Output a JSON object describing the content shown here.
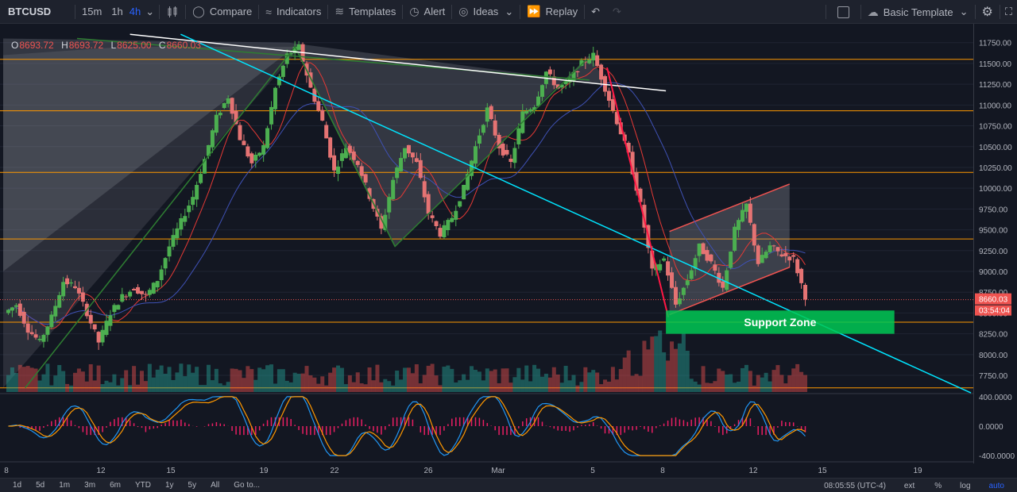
{
  "toolbar": {
    "symbol": "BTCUSD",
    "intervals": [
      "15m",
      "1h",
      "4h"
    ],
    "active_interval": "4h",
    "compare": "Compare",
    "indicators": "Indicators",
    "templates": "Templates",
    "alert": "Alert",
    "ideas": "Ideas",
    "replay": "Replay",
    "layout": "Basic Template"
  },
  "legend": {
    "open_label": "O",
    "open": "8693.72",
    "high_label": "H",
    "high": "8693.72",
    "low_label": "L",
    "low": "8625.00",
    "close_label": "C",
    "close": "8660.03"
  },
  "bottombar": {
    "ranges": [
      "1d",
      "5d",
      "1m",
      "3m",
      "6m",
      "YTD",
      "1y",
      "5y",
      "All"
    ],
    "goto": "Go to...",
    "clock": "08:05:55 (UTC-4)",
    "ext": "ext",
    "percent": "%",
    "log": "log",
    "auto": "auto"
  },
  "colors": {
    "background": "#131722",
    "up": "#26a69a",
    "up_body": "#4caf50",
    "down": "#ef5350",
    "down_body": "#e57373",
    "horizontal_levels": "#ff9800",
    "trendline_cyan": "#00e5ff",
    "support_zone": "#00c853",
    "accent": "#2962ff"
  },
  "icons": [
    "indicators-icon",
    "compare-icon",
    "templates-icon",
    "alert-icon",
    "ideas-icon",
    "replay-icon",
    "undo-icon",
    "redo-icon",
    "layout-icon",
    "cloud-icon",
    "settings-icon"
  ],
  "chart_data": {
    "type": "candlestick",
    "symbol": "BTCUSD",
    "interval": "4h",
    "ylim": [
      7550,
      11900
    ],
    "y_ticks": [
      7750,
      8000,
      8250,
      8500,
      8750,
      9000,
      9250,
      9500,
      9750,
      10000,
      10250,
      10500,
      10750,
      11000,
      11250,
      11500,
      11750
    ],
    "x_ticks": [
      "8",
      "12",
      "15",
      "19",
      "22",
      "26",
      "Mar",
      "5",
      "8",
      "12",
      "15",
      "19"
    ],
    "last_price": "8660.03",
    "last_price_value": 8660.03,
    "countdown": "03:54:04",
    "horizontal_levels": [
      11550,
      10930,
      10190,
      9390,
      8390,
      7600
    ],
    "annotations": {
      "support_zone": {
        "label": "Support Zone",
        "low": 8250,
        "high": 8530
      }
    },
    "ohlc_path": [
      8500,
      8600,
      8300,
      8150,
      8450,
      8880,
      8820,
      8500,
      8150,
      8500,
      8700,
      8800,
      8700,
      8900,
      9300,
      9600,
      9900,
      10350,
      10850,
      11100,
      10600,
      10300,
      10500,
      11200,
      11600,
      11700,
      11200,
      10800,
      10200,
      10500,
      10300,
      9900,
      9500,
      10100,
      10500,
      10300,
      9700,
      9450,
      9650,
      10000,
      10500,
      10950,
      10500,
      10300,
      10900,
      11000,
      11400,
      11200,
      11300,
      11500,
      11600,
      11200,
      10800,
      10400,
      9800,
      9000,
      9150,
      8600,
      8900,
      9300,
      9100,
      8800,
      9500,
      9800,
      9100,
      9300,
      9200,
      9150,
      8700
    ],
    "oscillator": {
      "ticks": [
        400,
        0,
        -400
      ],
      "tick_labels": [
        "400.0000",
        "0.0000",
        "-400.0000"
      ]
    }
  }
}
